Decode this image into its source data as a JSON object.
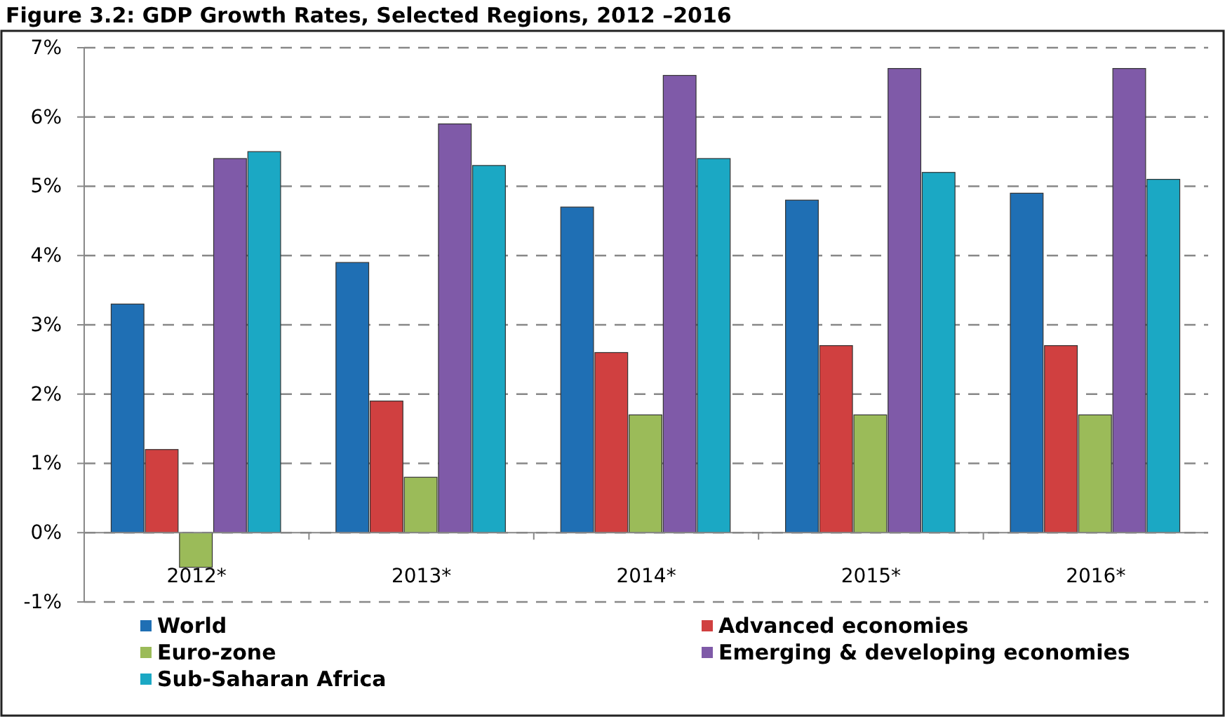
{
  "chart_data": {
    "type": "bar",
    "title": "Figure 3.2: GDP Growth Rates, Selected Regions, 2012 –2016",
    "categories": [
      "2012*",
      "2013*",
      "2014*",
      "2015*",
      "2016*"
    ],
    "series": [
      {
        "name": "World",
        "color": "#1f6fb4",
        "values": [
          3.3,
          3.9,
          4.7,
          4.8,
          4.9
        ]
      },
      {
        "name": "Advanced economies",
        "color": "#d04040",
        "values": [
          1.2,
          1.9,
          2.6,
          2.7,
          2.7
        ]
      },
      {
        "name": "Euro-zone",
        "color": "#9bbb59",
        "values": [
          -0.5,
          0.8,
          1.7,
          1.7,
          1.7
        ]
      },
      {
        "name": "Emerging & developing economies",
        "color": "#7f5aa8",
        "values": [
          5.4,
          5.9,
          6.6,
          6.7,
          6.7
        ]
      },
      {
        "name": "Sub-Saharan Africa",
        "color": "#1ba8c4",
        "values": [
          5.5,
          5.3,
          5.4,
          5.2,
          5.1
        ]
      }
    ],
    "ylim": [
      -1,
      7
    ],
    "yticks": [
      {
        "value": -1,
        "label": "-1%"
      },
      {
        "value": 0,
        "label": "0%"
      },
      {
        "value": 1,
        "label": "1%"
      },
      {
        "value": 2,
        "label": "2%"
      },
      {
        "value": 3,
        "label": "3%"
      },
      {
        "value": 4,
        "label": "4%"
      },
      {
        "value": 5,
        "label": "5%"
      },
      {
        "value": 6,
        "label": "6%"
      },
      {
        "value": 7,
        "label": "7%"
      }
    ],
    "grid": "y",
    "legend": "bottom"
  }
}
